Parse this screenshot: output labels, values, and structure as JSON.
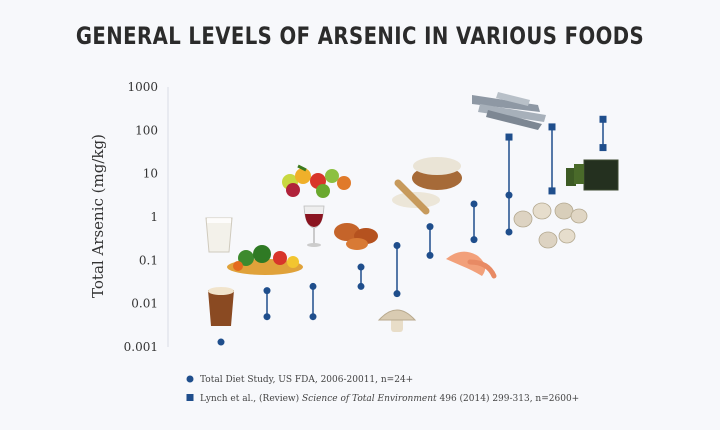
{
  "chart_data": {
    "type": "scatter",
    "title": "GENERAL LEVELS OF ARSENIC IN VARIOUS FOODS",
    "ylabel": "Total Arsenic (mg/kg)",
    "yscale": "log",
    "ylim": [
      0.001,
      1000
    ],
    "ytick_labels": [
      "1000",
      "100",
      "10",
      "1",
      "0.1",
      "0.01",
      "0.001"
    ],
    "yticks": [
      1000,
      100,
      10,
      1,
      0.1,
      0.01,
      0.001
    ],
    "grid": false,
    "legend_position": "bottom-left",
    "legend": [
      {
        "marker": "circle",
        "text": "Total Diet Study, US FDA, 2006-20011, n=24+"
      },
      {
        "marker": "square",
        "text_prefix": "Lynch et al., (Review) ",
        "text_italic": "Science of Total Environment",
        "text_suffix": " 496 (2014) 299-313, n=2600+"
      }
    ],
    "marker_color": "#1f4e8c",
    "food_icons": [
      "milk-glass-icon",
      "beer-icon",
      "vegetables-icon",
      "fruit-icon",
      "red-wine-icon",
      "chicken-icon",
      "mushroom-icon",
      "rice-icon",
      "shrimp-icon",
      "fish-icon",
      "clams-icon",
      "seaweed-icon"
    ],
    "columns": [
      {
        "low": 0.0013
      },
      {
        "low": 0.005,
        "high": 0.02
      },
      {
        "low": 0.005,
        "high": 0.025
      },
      {
        "low": 0.025,
        "high": 0.07
      },
      {
        "low": 0.017,
        "high": 0.22
      },
      {
        "low": 0.13,
        "high": 0.6
      },
      {
        "low": 0.3,
        "high": 2.0
      },
      {
        "low": 0.45,
        "high": 3.2,
        "high_square": 70
      },
      {
        "low_square": 4.0,
        "high_square": 120
      },
      {
        "low_square": 40,
        "high_square": 180
      }
    ]
  }
}
